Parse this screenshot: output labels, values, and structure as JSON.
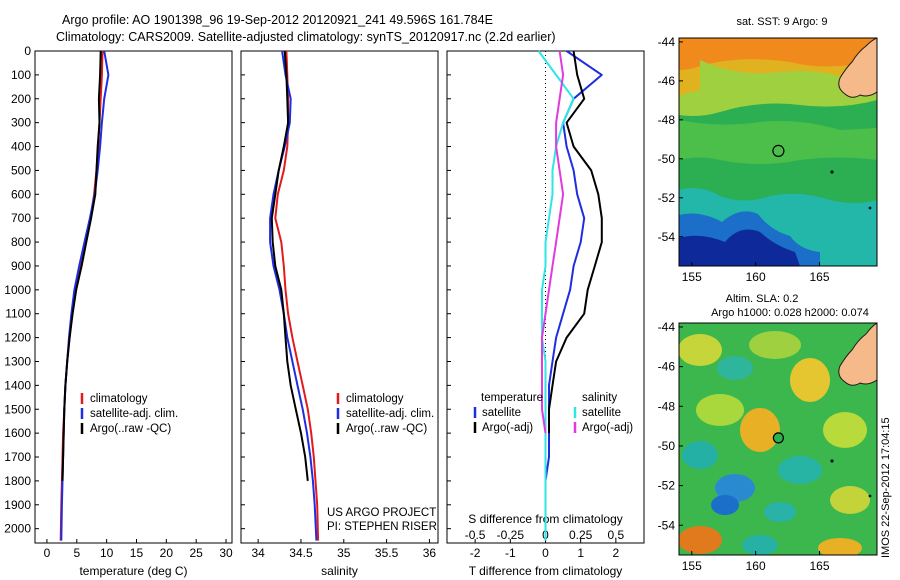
{
  "header": {
    "title_line1": "Argo profile: AO 1901398_96 19-Sep-2012 20120921_241 49.596S 161.784E",
    "title_line2": "Climatology: CARS2009. Satellite-adjusted climatology: synTS_20120917.nc (2.2d earlier)"
  },
  "colors": {
    "climatology": "#e31a1c",
    "satellite": "#1f2de0",
    "argo": "#000000",
    "sat_salinity": "#2ee6e6",
    "argo_salinity": "#e03ae0"
  },
  "chart_data": [
    {
      "type": "line",
      "id": "temperature",
      "xlabel": "temperature (deg C)",
      "ylabel": "",
      "xlim": [
        -2,
        31
      ],
      "ylim": [
        2060,
        0
      ],
      "xticks": [
        0,
        5,
        10,
        15,
        20,
        25,
        30
      ],
      "yticks": [
        0,
        100,
        200,
        300,
        400,
        500,
        600,
        700,
        800,
        900,
        1000,
        1100,
        1200,
        1300,
        1400,
        1500,
        1600,
        1700,
        1800,
        1900,
        2000
      ],
      "legend": [
        "climatology",
        "satellite-adj. clim.",
        "Argo(..raw -QC)"
      ],
      "series": [
        {
          "name": "climatology",
          "color": "#e31a1c",
          "x": [
            9.3,
            9.2,
            9.0,
            8.8,
            8.6,
            8.3,
            7.9,
            7.3,
            6.5,
            5.6,
            4.8,
            4.2,
            3.8,
            3.4,
            3.1,
            2.9,
            2.7,
            2.6,
            2.5,
            2.4,
            2.3
          ],
          "y": [
            0,
            100,
            200,
            300,
            400,
            500,
            600,
            700,
            800,
            900,
            1000,
            1100,
            1200,
            1300,
            1400,
            1500,
            1600,
            1700,
            1800,
            1900,
            2050
          ]
        },
        {
          "name": "satellite-adj. clim.",
          "color": "#1f2de0",
          "x": [
            9.6,
            10.3,
            9.6,
            9.2,
            8.9,
            8.5,
            8.0,
            7.2,
            6.3,
            5.4,
            4.6,
            4.1,
            3.7,
            3.4,
            3.1,
            2.9,
            2.8,
            2.7,
            2.6,
            2.5,
            2.4
          ],
          "y": [
            0,
            100,
            200,
            300,
            400,
            500,
            600,
            700,
            800,
            900,
            1000,
            1100,
            1200,
            1300,
            1400,
            1500,
            1600,
            1700,
            1800,
            1900,
            2050
          ]
        },
        {
          "name": "Argo(..raw -QC)",
          "color": "#000000",
          "x": [
            9.0,
            8.9,
            8.7,
            8.8,
            8.5,
            8.3,
            8.1,
            7.4,
            6.6,
            5.8,
            4.9,
            4.3,
            3.8,
            3.4,
            3.1,
            2.9,
            2.8,
            2.7,
            2.6
          ],
          "y": [
            0,
            100,
            200,
            300,
            400,
            500,
            600,
            700,
            800,
            900,
            1000,
            1100,
            1200,
            1300,
            1400,
            1500,
            1600,
            1700,
            1800
          ]
        }
      ]
    },
    {
      "type": "line",
      "id": "salinity",
      "xlabel": "salinity",
      "ylabel": "",
      "xlim": [
        33.8,
        36.1
      ],
      "ylim": [
        2060,
        0
      ],
      "xticks": [
        34,
        34.5,
        35,
        35.5,
        36
      ],
      "legend": [
        "climatology",
        "satellite-adj. clim.",
        "Argo(..raw -QC)"
      ],
      "series": [
        {
          "name": "climatology",
          "color": "#e31a1c",
          "x": [
            34.33,
            34.34,
            34.35,
            34.35,
            34.34,
            34.3,
            34.23,
            34.2,
            34.27,
            34.3,
            34.32,
            34.35,
            34.4,
            34.46,
            34.52,
            34.58,
            34.62,
            34.65,
            34.67,
            34.69,
            34.7
          ],
          "y": [
            0,
            100,
            200,
            300,
            400,
            500,
            600,
            700,
            800,
            900,
            1000,
            1100,
            1200,
            1300,
            1400,
            1500,
            1600,
            1700,
            1800,
            1900,
            2050
          ]
        },
        {
          "name": "satellite-adj. clim.",
          "color": "#1f2de0",
          "x": [
            34.28,
            34.32,
            34.38,
            34.37,
            34.31,
            34.24,
            34.18,
            34.14,
            34.14,
            34.18,
            34.25,
            34.3,
            34.34,
            34.4,
            34.46,
            34.52,
            34.57,
            34.61,
            34.64,
            34.66,
            34.68
          ],
          "y": [
            0,
            100,
            200,
            300,
            400,
            500,
            600,
            700,
            800,
            900,
            1000,
            1100,
            1200,
            1300,
            1400,
            1500,
            1600,
            1700,
            1800,
            1900,
            2050
          ]
        },
        {
          "name": "Argo(..raw -QC)",
          "color": "#000000",
          "x": [
            34.31,
            34.33,
            34.34,
            34.35,
            34.3,
            34.24,
            34.2,
            34.16,
            34.17,
            34.2,
            34.27,
            34.3,
            34.32,
            34.34,
            34.38,
            34.44,
            34.5,
            34.55,
            34.58
          ],
          "y": [
            0,
            100,
            200,
            300,
            400,
            500,
            600,
            700,
            800,
            900,
            1000,
            1100,
            1200,
            1300,
            1400,
            1500,
            1600,
            1700,
            1800
          ]
        }
      ],
      "annotation_line1": "US ARGO PROJECT",
      "annotation_line2": "PI: STEPHEN RISER"
    },
    {
      "type": "line",
      "id": "difference",
      "xlabel": "T difference from climatology",
      "xlabel_top": "S difference from climatology",
      "xlim": [
        -2.8,
        2.8
      ],
      "ylim": [
        2060,
        0
      ],
      "xticks": [
        -2,
        -1,
        0,
        1,
        2
      ],
      "xticks_top_labels": [
        "-0.5",
        "-0.25",
        "0",
        "0.25",
        "0.5"
      ],
      "legend_titles": [
        "temperature",
        "salinity"
      ],
      "legend": [
        "satellite",
        "Argo(-adj)",
        "satellite",
        "Argo(-adj)"
      ],
      "series": [
        {
          "name": "temperature satellite",
          "color": "#1f2de0",
          "x": [
            0.6,
            1.6,
            0.8,
            0.5,
            0.6,
            0.8,
            0.9,
            1.1,
            1.0,
            0.8,
            0.7,
            0.5,
            0.3,
            0.2,
            0.1,
            0.1,
            0.1,
            0.1,
            0.0,
            0.0,
            0.0
          ],
          "y": [
            0,
            100,
            200,
            300,
            400,
            500,
            600,
            700,
            800,
            900,
            1000,
            1100,
            1200,
            1300,
            1400,
            1500,
            1600,
            1700,
            1800,
            1900,
            2050
          ]
        },
        {
          "name": "temperature Argo(-adj)",
          "color": "#000000",
          "x": [
            0.8,
            0.9,
            1.1,
            0.6,
            0.8,
            1.3,
            1.5,
            1.6,
            1.6,
            1.4,
            1.2,
            1.1,
            0.6,
            0.3,
            0.2,
            0.1,
            0.1
          ],
          "y": [
            0,
            100,
            200,
            300,
            400,
            500,
            600,
            700,
            800,
            900,
            1000,
            1100,
            1200,
            1300,
            1400,
            1500,
            1600
          ]
        },
        {
          "name": "salinity satellite",
          "color": "#2ee6e6",
          "x": [
            -0.2,
            0.3,
            0.8,
            0.5,
            0.3,
            0.2,
            0.2,
            0.1,
            0.0,
            0.0,
            -0.1,
            -0.1,
            -0.1,
            0.0,
            0.0,
            0.0,
            0.0,
            0.0,
            0.0,
            0.0,
            0.0
          ],
          "y": [
            0,
            100,
            200,
            300,
            400,
            500,
            600,
            700,
            800,
            900,
            1000,
            1100,
            1200,
            1300,
            1400,
            1500,
            1600,
            1700,
            1800,
            1900,
            2050
          ]
        },
        {
          "name": "salinity Argo(-adj)",
          "color": "#e03ae0",
          "x": [
            0.4,
            0.5,
            0.4,
            0.3,
            0.3,
            0.4,
            0.5,
            0.4,
            0.3,
            0.2,
            0.1,
            0.0,
            -0.1,
            -0.1,
            -0.1,
            -0.1,
            0.0
          ],
          "y": [
            0,
            100,
            200,
            300,
            400,
            500,
            600,
            700,
            800,
            900,
            1000,
            1100,
            1200,
            1300,
            1400,
            1500,
            1600
          ]
        }
      ]
    },
    {
      "type": "heatmap",
      "id": "sst_map",
      "title": "sat. SST: 9  Argo: 9",
      "xlim": [
        154,
        169.5
      ],
      "ylim": [
        -55.5,
        -43.8
      ],
      "xticks": [
        155,
        160,
        165
      ],
      "yticks": [
        -44,
        -46,
        -48,
        -50,
        -52,
        -54
      ],
      "argo_position": {
        "lon": 161.784,
        "lat": -49.596
      }
    },
    {
      "type": "heatmap",
      "id": "sla_map",
      "title": "Altim. SLA: 0.2",
      "subtitle": "Argo h1000: 0.028 h2000: 0.074",
      "xlim": [
        154,
        169.5
      ],
      "ylim": [
        -55.5,
        -43.8
      ],
      "xticks": [
        155,
        160,
        165
      ],
      "yticks": [
        -44,
        -46,
        -48,
        -50,
        -52,
        -54
      ],
      "argo_position": {
        "lon": 161.784,
        "lat": -49.596
      }
    }
  ],
  "footer": {
    "stamp": "IMOS 22-Sep-2012 17:04:15"
  }
}
